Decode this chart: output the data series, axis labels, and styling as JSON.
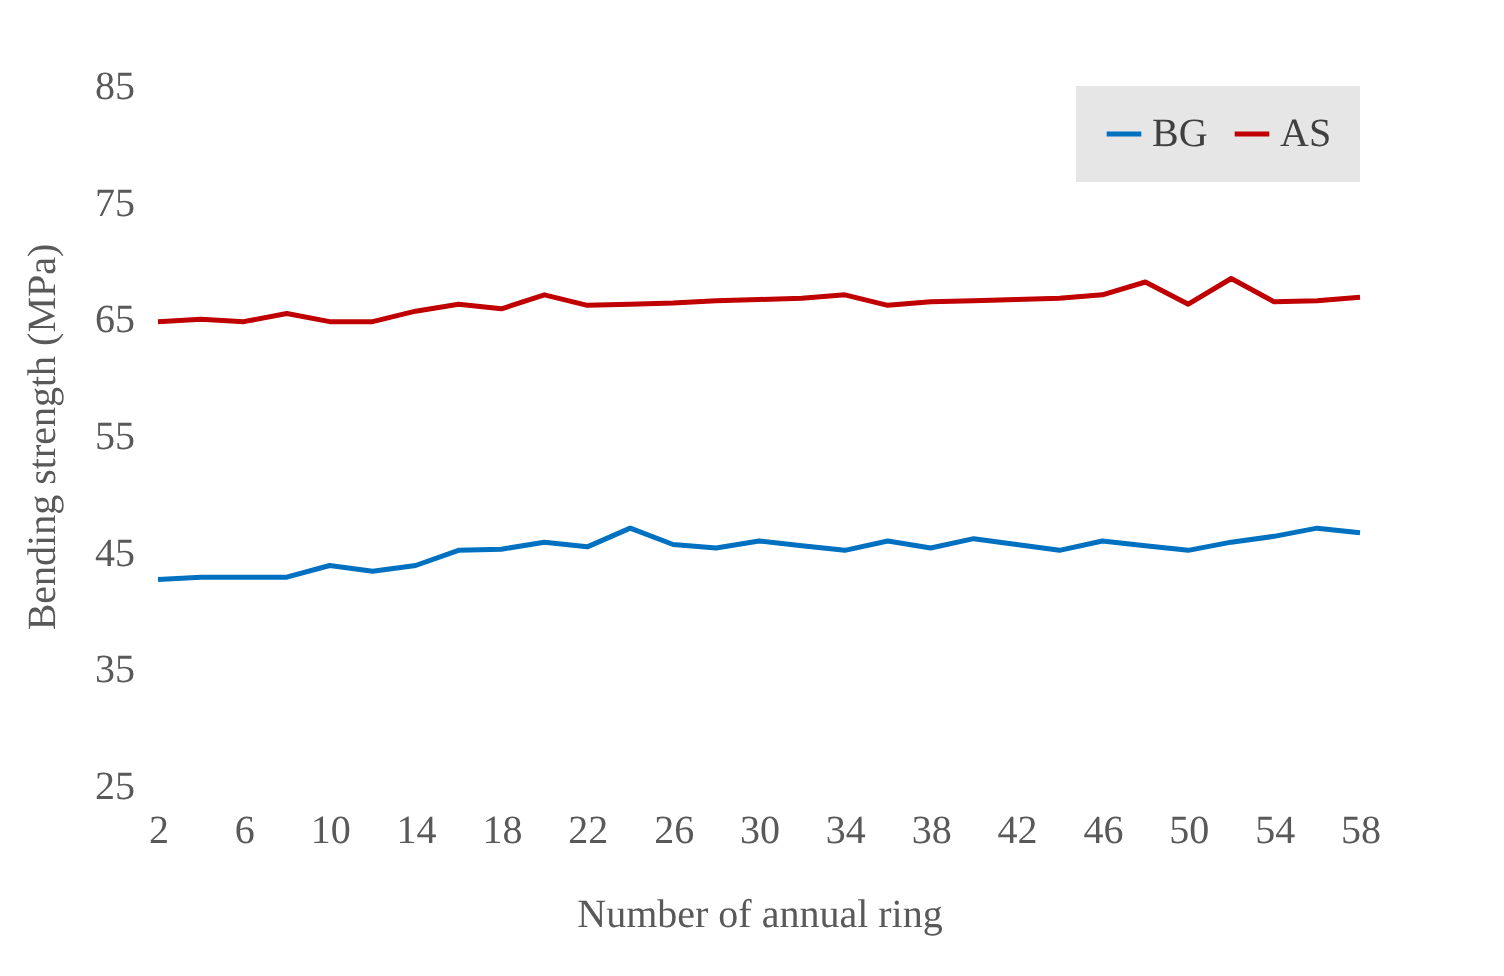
{
  "chart_data": {
    "type": "line",
    "xlabel": "Number of annual ring",
    "ylabel": "Bending strength (MPa)",
    "x": [
      2,
      4,
      6,
      8,
      10,
      12,
      14,
      16,
      18,
      20,
      22,
      24,
      26,
      28,
      30,
      32,
      34,
      36,
      38,
      40,
      42,
      44,
      46,
      48,
      50,
      52,
      54,
      56,
      58
    ],
    "xlim": [
      2,
      58
    ],
    "xticks": [
      2,
      6,
      10,
      14,
      18,
      22,
      26,
      30,
      34,
      38,
      42,
      46,
      50,
      54,
      58
    ],
    "series": [
      {
        "name": "BG",
        "color": "#0070c0",
        "values": [
          42.7,
          42.9,
          42.9,
          42.9,
          43.9,
          43.4,
          43.9,
          45.2,
          45.3,
          45.9,
          45.5,
          47.1,
          45.7,
          45.4,
          46.0,
          45.6,
          45.2,
          46.0,
          45.4,
          46.2,
          45.7,
          45.2,
          46.0,
          45.6,
          45.2,
          45.9,
          46.4,
          47.1,
          46.7
        ]
      },
      {
        "name": "AS",
        "color": "#c00000",
        "values": [
          64.8,
          65.0,
          64.8,
          65.5,
          64.8,
          64.8,
          65.7,
          66.3,
          65.9,
          67.1,
          66.2,
          66.3,
          66.4,
          66.6,
          66.7,
          66.8,
          67.1,
          66.2,
          66.5,
          66.6,
          66.7,
          66.8,
          67.1,
          68.2,
          66.3,
          68.5,
          66.5,
          66.6,
          66.9
        ]
      }
    ],
    "ylim": [
      25,
      85
    ],
    "yticks": [
      25,
      35,
      45,
      55,
      65,
      75,
      85
    ],
    "grid": false,
    "legend": "top right",
    "marker": "none",
    "line_style": "solid"
  }
}
